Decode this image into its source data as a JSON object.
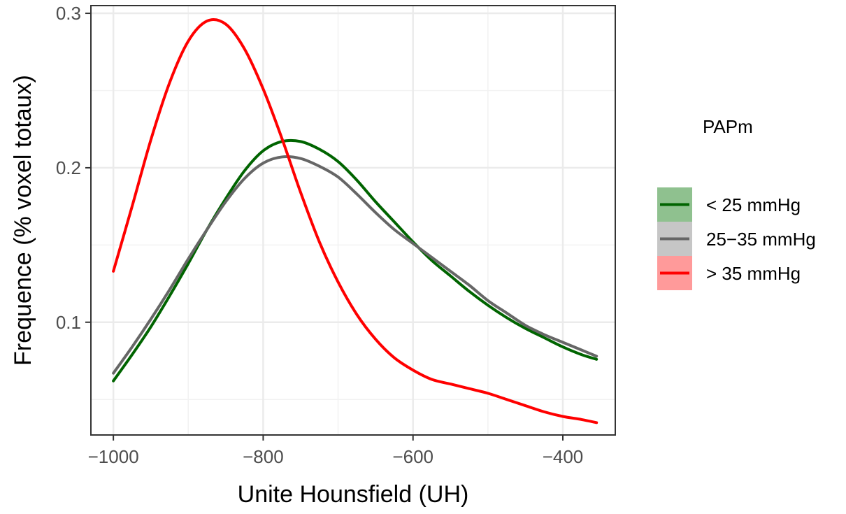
{
  "chart_data": {
    "type": "line",
    "xlabel": "Unite Hounsfield (UH)",
    "ylabel": "Frequence (% voxel totaux)",
    "xlim": [
      -1030,
      -330
    ],
    "ylim": [
      0.027,
      0.305
    ],
    "x_ticks": [
      -1000,
      -800,
      -600,
      -400
    ],
    "x_tick_labels": [
      "−1000",
      "−800",
      "−600",
      "−400"
    ],
    "y_ticks": [
      0.1,
      0.2,
      0.3
    ],
    "y_tick_labels": [
      "0.1",
      "0.2",
      "0.3"
    ],
    "grid": true,
    "legend": {
      "title": "PAPm",
      "position": "right"
    },
    "series": [
      {
        "name": "< 25 mmHg",
        "color": "#006400",
        "band_color": "#8fc18f",
        "x": [
          -1000,
          -975,
          -950,
          -925,
          -900,
          -875,
          -850,
          -825,
          -800,
          -775,
          -750,
          -725,
          -700,
          -675,
          -650,
          -625,
          -600,
          -575,
          -550,
          -525,
          -500,
          -475,
          -450,
          -425,
          -400,
          -375,
          -355
        ],
        "y": [
          0.062,
          0.079,
          0.097,
          0.117,
          0.138,
          0.16,
          0.18,
          0.198,
          0.211,
          0.217,
          0.217,
          0.212,
          0.204,
          0.192,
          0.178,
          0.165,
          0.152,
          0.14,
          0.13,
          0.12,
          0.111,
          0.103,
          0.096,
          0.09,
          0.084,
          0.079,
          0.076
        ]
      },
      {
        "name": "25−35 mmHg",
        "color": "#666666",
        "band_color": "#c6c6c6",
        "x": [
          -1000,
          -975,
          -950,
          -925,
          -900,
          -875,
          -850,
          -825,
          -800,
          -775,
          -750,
          -725,
          -700,
          -675,
          -650,
          -625,
          -600,
          -575,
          -550,
          -525,
          -500,
          -475,
          -450,
          -425,
          -400,
          -375,
          -355
        ],
        "y": [
          0.067,
          0.084,
          0.102,
          0.121,
          0.141,
          0.16,
          0.178,
          0.193,
          0.203,
          0.207,
          0.206,
          0.201,
          0.194,
          0.183,
          0.171,
          0.16,
          0.151,
          0.142,
          0.133,
          0.124,
          0.114,
          0.106,
          0.098,
          0.092,
          0.087,
          0.082,
          0.078
        ]
      },
      {
        "name": "> 35 mmHg",
        "color": "#ff0000",
        "band_color": "#ff9a9a",
        "x": [
          -1000,
          -975,
          -950,
          -925,
          -900,
          -875,
          -850,
          -825,
          -800,
          -775,
          -750,
          -725,
          -700,
          -675,
          -650,
          -625,
          -600,
          -575,
          -550,
          -525,
          -500,
          -475,
          -450,
          -425,
          -400,
          -375,
          -355
        ],
        "y": [
          0.133,
          0.175,
          0.218,
          0.255,
          0.282,
          0.295,
          0.293,
          0.277,
          0.251,
          0.219,
          0.184,
          0.152,
          0.126,
          0.105,
          0.089,
          0.077,
          0.069,
          0.063,
          0.06,
          0.057,
          0.054,
          0.05,
          0.046,
          0.042,
          0.039,
          0.037,
          0.035
        ]
      }
    ]
  }
}
